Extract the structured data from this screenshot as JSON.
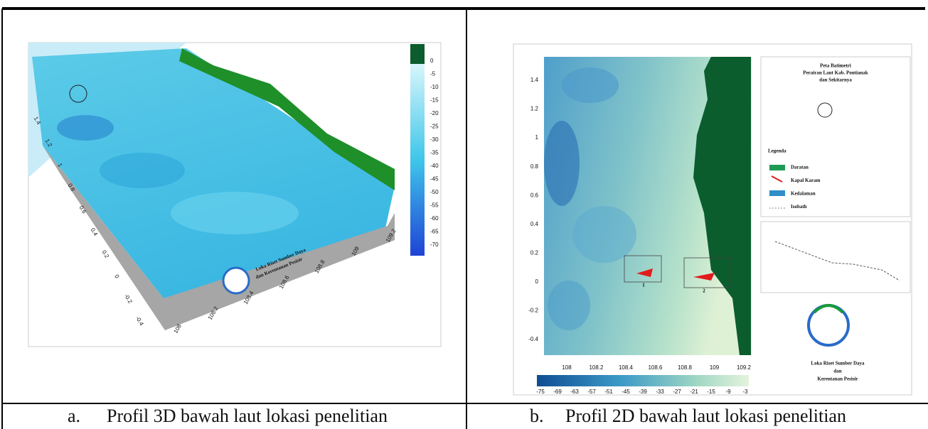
{
  "panels": [
    {
      "label": "a.",
      "caption": "Profil 3D bawah laut lokasi penelitian",
      "colorbar_labels": [
        "0",
        "-5",
        "-10",
        "-15",
        "-20",
        "-25",
        "-30",
        "-35",
        "-40",
        "-45",
        "-50",
        "-55",
        "-60",
        "-65",
        "-70"
      ],
      "y_axis_labels": [
        "-0.4",
        "-0.2",
        "0",
        "0.2",
        "0.4",
        "0.6",
        "0.8",
        "1",
        "1.2",
        "1.4"
      ],
      "x_axis_labels": [
        "108",
        "108.2",
        "108.4",
        "108.6",
        "108.8",
        "109",
        "109.2"
      ],
      "logo_text": [
        "Loka Riset Sumber Daya",
        "dan Kerentanan Pesisir"
      ]
    },
    {
      "label": "b.",
      "caption": "Profil 2D bawah laut lokasi penelitian",
      "y_axis_labels": [
        "1.4",
        "1.2",
        "1",
        "0.8",
        "0.6",
        "0.4",
        "0.2",
        "0",
        "-0.2",
        "-0.4"
      ],
      "x_axis_labels": [
        "108",
        "108.2",
        "108.4",
        "108.6",
        "108.8",
        "109",
        "109.2"
      ],
      "colorbar_labels": [
        "-75",
        "-69",
        "-63",
        "-57",
        "-51",
        "-45",
        "-39",
        "-33",
        "-27",
        "-21",
        "-15",
        "-9",
        "-3"
      ],
      "legend_title": [
        "Peta Batimetri",
        "Perairan Laut Kab. Pontianak",
        "dan Sekitarnya"
      ],
      "legend_heading": "Legenda",
      "legend_items": [
        "Daratan",
        "Kapal Karam",
        "Kedalaman",
        "Isobath"
      ],
      "site_labels": [
        "1",
        "2"
      ],
      "logo_text": [
        "Loka Riset Sumber Daya",
        "dan",
        "Kerentanan Pesisir"
      ]
    }
  ]
}
